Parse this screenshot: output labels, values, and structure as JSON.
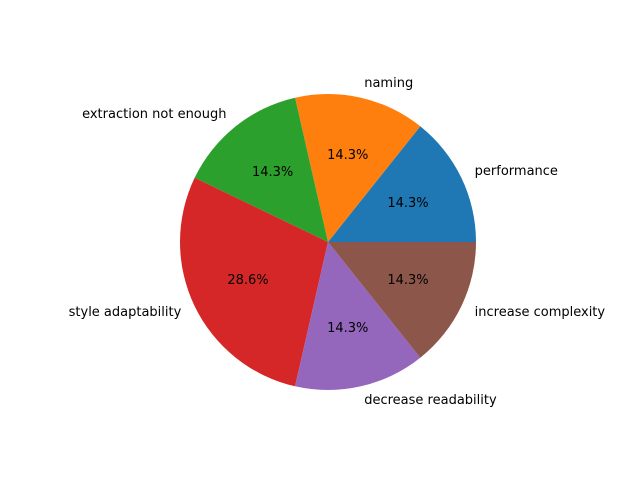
{
  "chart_data": {
    "type": "pie",
    "title": "",
    "labels": [
      "performance",
      "naming",
      "extraction not enough",
      "style adaptability",
      "decrease readability",
      "increase complexity"
    ],
    "values": [
      1,
      1,
      1,
      2,
      1,
      1
    ],
    "percent_labels": [
      "14.3%",
      "14.3%",
      "14.3%",
      "28.6%",
      "14.3%",
      "14.3%"
    ],
    "colors": [
      "#1f77b4",
      "#ff7f0e",
      "#2ca02c",
      "#d62728",
      "#9467bd",
      "#8c564b"
    ],
    "start_angle_deg": 0,
    "direction": "counterclockwise",
    "legend": "none"
  }
}
